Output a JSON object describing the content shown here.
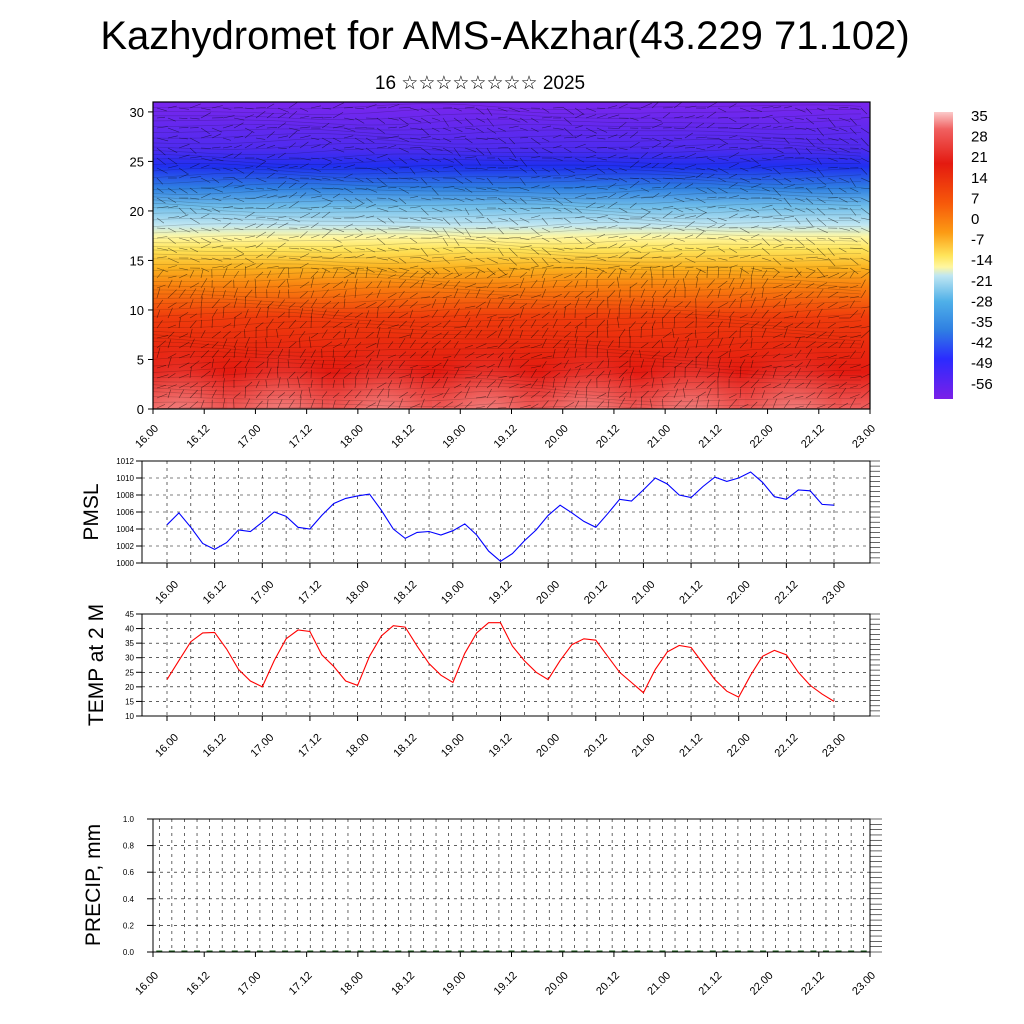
{
  "title": "Kazhydromet for AMS-Akzhar(43.229 71.102)",
  "subtitle": "16 ☆☆☆☆☆☆☆☆ 2025",
  "x_tick_labels": [
    "16.00",
    "16.12",
    "17.00",
    "17.12",
    "18.00",
    "18.12",
    "19.00",
    "19.12",
    "20.00",
    "20.12",
    "21.00",
    "21.12",
    "22.00",
    "22.12",
    "23.00"
  ],
  "chart_data": [
    {
      "type": "heatmap",
      "name_panel": "cross-section",
      "x_ticks": [
        "16.00",
        "16.12",
        "17.00",
        "17.12",
        "18.00",
        "18.12",
        "19.00",
        "19.12",
        "20.00",
        "20.12",
        "21.00",
        "21.12",
        "22.00",
        "22.12",
        "23.00"
      ],
      "y_ticks": [
        0,
        5,
        10,
        15,
        20,
        25,
        30
      ],
      "ylim": [
        0,
        31
      ],
      "colorbar_labels": [
        "35",
        "28",
        "21",
        "14",
        "7",
        "0",
        "-7",
        "-14",
        "-21",
        "-28",
        "-35",
        "-42",
        "-49",
        "-56"
      ],
      "colorscale": [
        "#7b1fe8",
        "#2b2bff",
        "#2f8fe8",
        "#9fd4ec",
        "#fff27a",
        "#fdd23b",
        "#fc9b14",
        "#f75a0a",
        "#e81a0a",
        "#ef2121",
        "#f88a8a",
        "#fbcaca"
      ],
      "layers_temperature": [
        {
          "height": 0,
          "value": 35
        },
        {
          "height": 5,
          "value": 25
        },
        {
          "height": 10,
          "value": 14
        },
        {
          "height": 15,
          "value": -7
        },
        {
          "height": 20,
          "value": -35
        },
        {
          "height": 25,
          "value": -56
        },
        {
          "height": 30,
          "value": -56
        }
      ],
      "warm_surface_maxima": [
        "16.06",
        "17.06",
        "18.06",
        "19.06",
        "20.06",
        "21.06",
        "22.06"
      ]
    },
    {
      "type": "line",
      "ylabel": "PMSL",
      "ylim": [
        1000,
        1012
      ],
      "y_ticks": [
        1000,
        1002,
        1004,
        1006,
        1008,
        1010,
        1012
      ],
      "color": "#0000ff",
      "x_ticks": [
        "16.00",
        "16.12",
        "17.00",
        "17.12",
        "18.00",
        "18.12",
        "19.00",
        "19.12",
        "20.00",
        "20.12",
        "21.00",
        "21.12",
        "22.00",
        "22.12",
        "23.00"
      ],
      "x_hours": [
        0,
        3,
        6,
        9,
        12,
        15,
        18,
        21,
        24,
        27,
        30,
        33,
        36,
        39,
        42,
        45,
        48,
        51,
        54,
        57,
        60,
        63,
        66,
        69,
        72,
        75,
        78,
        81,
        84,
        87,
        90,
        93,
        96,
        99,
        102,
        105,
        108,
        111,
        114,
        117,
        120,
        123,
        126,
        129,
        132,
        135,
        138,
        141,
        144,
        147,
        150,
        153,
        156,
        159,
        162,
        165,
        168
      ],
      "values": [
        1004.5,
        1005.9,
        1004.2,
        1002.3,
        1001.6,
        1002.4,
        1003.9,
        1003.7,
        1004.8,
        1006.0,
        1005.5,
        1004.2,
        1004.0,
        1005.6,
        1007.0,
        1007.6,
        1007.9,
        1008.1,
        1006.2,
        1004.0,
        1002.9,
        1003.6,
        1003.7,
        1003.3,
        1003.8,
        1004.6,
        1003.3,
        1001.4,
        1000.2,
        1001.1,
        1002.6,
        1003.9,
        1005.6,
        1006.8,
        1005.9,
        1004.9,
        1004.2,
        1005.8,
        1007.5,
        1007.3,
        1008.6,
        1010.0,
        1009.3,
        1008.0,
        1007.7,
        1009.0,
        1010.1,
        1009.6,
        1010.0,
        1010.7,
        1009.5,
        1007.8,
        1007.5,
        1008.6,
        1008.5,
        1006.9,
        1006.8
      ]
    },
    {
      "type": "line",
      "ylabel": "TEMP at 2 M",
      "ylim": [
        10,
        45
      ],
      "y_ticks": [
        10,
        15,
        20,
        25,
        30,
        35,
        40,
        45
      ],
      "color": "#ff0000",
      "x_ticks": [
        "16.00",
        "16.12",
        "17.00",
        "17.12",
        "18.00",
        "18.12",
        "19.00",
        "19.12",
        "20.00",
        "20.12",
        "21.00",
        "21.12",
        "22.00",
        "22.12",
        "23.00"
      ],
      "x_hours": [
        0,
        3,
        6,
        9,
        12,
        15,
        18,
        21,
        24,
        27,
        30,
        33,
        36,
        39,
        42,
        45,
        48,
        51,
        54,
        57,
        60,
        63,
        66,
        69,
        72,
        75,
        78,
        81,
        84,
        87,
        90,
        93,
        96,
        99,
        102,
        105,
        108,
        111,
        114,
        117,
        120,
        123,
        126,
        129,
        132,
        135,
        138,
        141,
        144,
        147,
        150,
        153,
        156,
        159,
        162,
        165,
        168
      ],
      "values": [
        22.5,
        29,
        35.5,
        38.5,
        38.7,
        33,
        26,
        22,
        20,
        29,
        36.5,
        39.5,
        39,
        31,
        27,
        22,
        20.5,
        30.5,
        37.5,
        41,
        40.5,
        34,
        28,
        24,
        21.5,
        31.5,
        38.5,
        42,
        42,
        34,
        29,
        25,
        22.5,
        29,
        34.5,
        36.5,
        36,
        30.5,
        25,
        21.5,
        18,
        26,
        32,
        34.2,
        33.5,
        28,
        22.5,
        18.5,
        16.5,
        24,
        30.5,
        32.5,
        31,
        25,
        20.5,
        17.5,
        15
      ]
    },
    {
      "type": "bar",
      "ylabel": "PRECIP, mm",
      "ylim": [
        0,
        1
      ],
      "y_ticks": [
        "0.0",
        "0.2",
        "0.4",
        "0.6",
        "0.8",
        "1.0"
      ],
      "x_ticks": [
        "16.00",
        "16.12",
        "17.00",
        "17.12",
        "18.00",
        "18.12",
        "19.00",
        "19.12",
        "20.00",
        "20.12",
        "21.00",
        "21.12",
        "22.00",
        "22.12",
        "23.00"
      ],
      "values": [
        0,
        0,
        0,
        0,
        0,
        0,
        0,
        0,
        0,
        0,
        0,
        0,
        0,
        0,
        0,
        0,
        0,
        0,
        0,
        0,
        0,
        0,
        0,
        0,
        0,
        0,
        0,
        0,
        0,
        0,
        0,
        0,
        0,
        0,
        0,
        0,
        0,
        0,
        0,
        0,
        0,
        0,
        0,
        0,
        0,
        0,
        0,
        0,
        0,
        0,
        0,
        0,
        0,
        0,
        0,
        0,
        0
      ]
    }
  ]
}
